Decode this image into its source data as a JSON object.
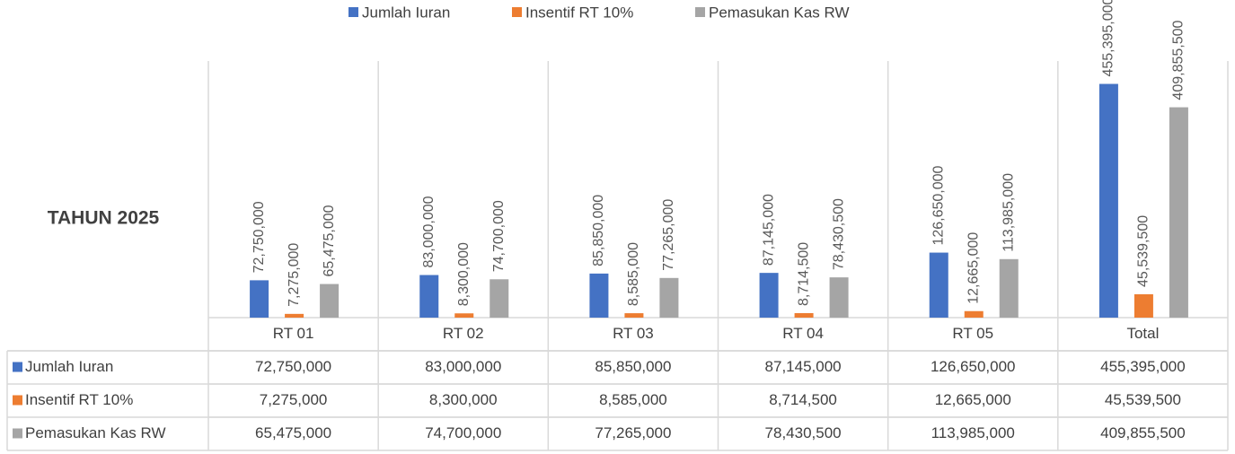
{
  "chart_data": {
    "type": "bar",
    "title": "TAHUN 2025",
    "categories": [
      "RT 01",
      "RT 02",
      "RT 03",
      "RT 04",
      "RT 05",
      "Total"
    ],
    "series": [
      {
        "name": "Jumlah Iuran",
        "color": "#4472c4",
        "values": [
          72750000,
          83000000,
          85850000,
          87145000,
          126650000,
          455395000
        ],
        "value_labels": [
          "72,750,000",
          "83,000,000",
          "85,850,000",
          "87,145,000",
          "126,650,000",
          "455,395,000"
        ]
      },
      {
        "name": "Insentif RT 10%",
        "color": "#ed7d31",
        "values": [
          7275000,
          8300000,
          8585000,
          8714500,
          12665000,
          45539500
        ],
        "value_labels": [
          "7,275,000",
          "8,300,000",
          "8,585,000",
          "8,714,500",
          "12,665,000",
          "45,539,500"
        ]
      },
      {
        "name": "Pemasukan Kas RW",
        "color": "#a5a5a5",
        "values": [
          65475000,
          74700000,
          77265000,
          78430500,
          113985000,
          409855500
        ],
        "value_labels": [
          "65,475,000",
          "74,700,000",
          "77,265,000",
          "78,430,500",
          "113,985,000",
          "409,855,500"
        ]
      }
    ],
    "ylim": [
      0,
      500000000
    ],
    "legend": "top"
  }
}
